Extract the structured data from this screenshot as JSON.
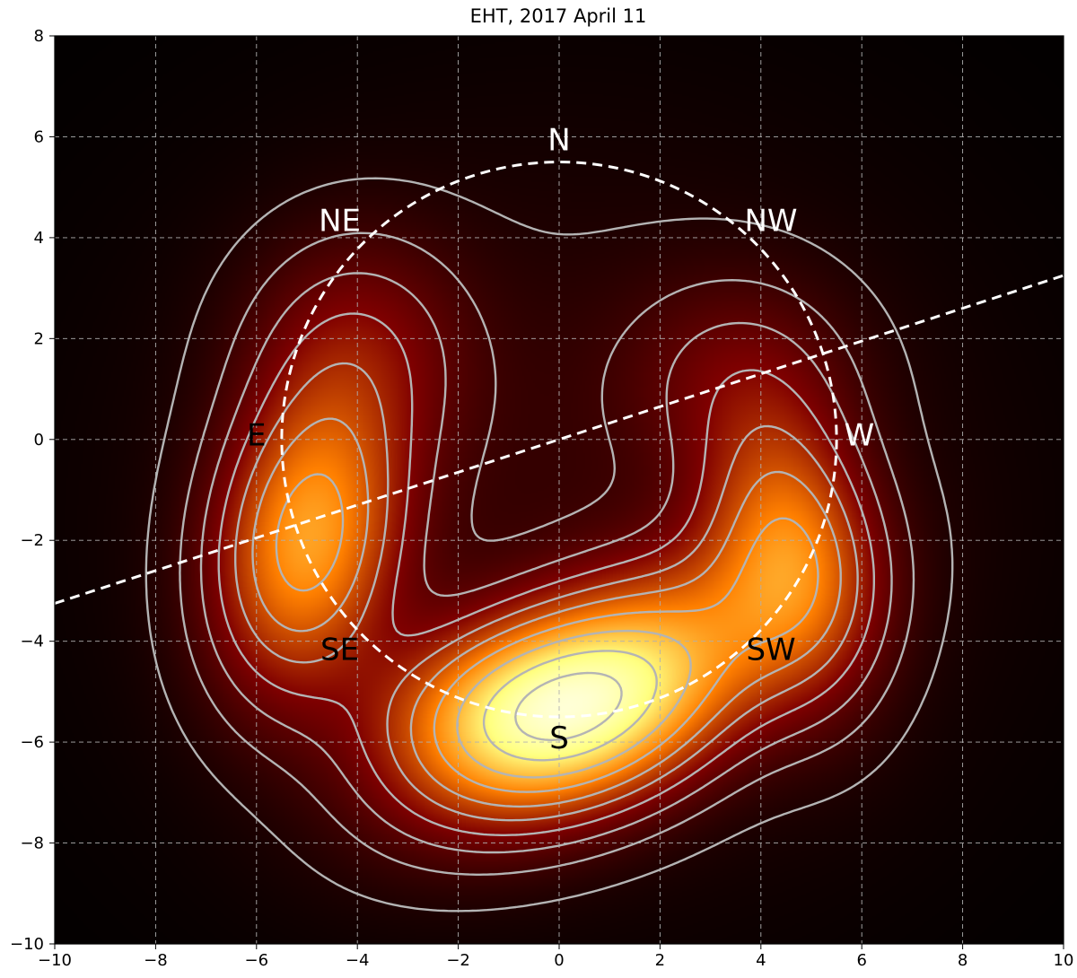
{
  "chart_data": {
    "type": "heatmap",
    "title": "EHT, 2017 April 11",
    "xlabel": "",
    "ylabel": "",
    "xlim": [
      -10,
      10
    ],
    "ylim": [
      -10,
      8
    ],
    "xticks": [
      -10,
      -8,
      -6,
      -4,
      -2,
      0,
      2,
      4,
      6,
      8,
      10
    ],
    "yticks": [
      -10,
      -8,
      -6,
      -4,
      -2,
      0,
      2,
      4,
      6,
      8
    ],
    "xtick_labels": [
      "−10",
      "−8",
      "−6",
      "−4",
      "−2",
      "0",
      "2",
      "4",
      "6",
      "8",
      "10"
    ],
    "ytick_labels": [
      "−10",
      "−8",
      "−6",
      "−4",
      "−2",
      "0",
      "2",
      "4",
      "6",
      "8"
    ],
    "grid": true,
    "colormap": "afmhot",
    "background_color": "#000000",
    "intensity_components": [
      {
        "cx": 0.9,
        "cy": -5.0,
        "sx": 2.6,
        "sy": 1.3,
        "rot_deg": 28,
        "amp": 1.0
      },
      {
        "cx": -0.5,
        "cy": -5.4,
        "sx": 2.0,
        "sy": 1.2,
        "rot_deg": 5,
        "amp": 0.75
      },
      {
        "cx": -5.0,
        "cy": -2.0,
        "sx": 1.2,
        "sy": 2.0,
        "rot_deg": -10,
        "amp": 0.9
      },
      {
        "cx": 4.6,
        "cy": -2.2,
        "sx": 1.1,
        "sy": 1.9,
        "rot_deg": 10,
        "amp": 0.7
      },
      {
        "cx": -4.0,
        "cy": 1.8,
        "sx": 1.5,
        "sy": 1.6,
        "rot_deg": 0,
        "amp": 0.28
      },
      {
        "cx": 3.5,
        "cy": 1.3,
        "sx": 1.6,
        "sy": 1.4,
        "rot_deg": 0,
        "amp": 0.2
      },
      {
        "cx": 0.0,
        "cy": -1.5,
        "sx": 5.5,
        "sy": 5.0,
        "rot_deg": 0,
        "amp": 0.12
      }
    ],
    "contour_levels": [
      0.04,
      0.09,
      0.15,
      0.22,
      0.3,
      0.39,
      0.5,
      0.62,
      0.76,
      0.9
    ],
    "contour_color": "#b4b4b4",
    "ring": {
      "cx": 0,
      "cy": 0,
      "r": 5.5,
      "style": "dashed",
      "color": "#ffffff"
    },
    "axis_line": {
      "x1": -10,
      "y1": -3.25,
      "x2": 10,
      "y2": 3.25,
      "style": "dashed",
      "color": "#ffffff"
    },
    "annotations": [
      {
        "text": "N",
        "x": 0.0,
        "y": 5.9,
        "color": "#ffffff"
      },
      {
        "text": "NE",
        "x": -4.35,
        "y": 4.3,
        "color": "#ffffff"
      },
      {
        "text": "NW",
        "x": 4.2,
        "y": 4.3,
        "color": "#ffffff"
      },
      {
        "text": "E",
        "x": -6.0,
        "y": 0.05,
        "color": "#000000"
      },
      {
        "text": "W",
        "x": 5.95,
        "y": 0.05,
        "color": "#ffffff"
      },
      {
        "text": "SE",
        "x": -4.35,
        "y": -4.2,
        "color": "#000000"
      },
      {
        "text": "SW",
        "x": 4.2,
        "y": -4.2,
        "color": "#000000"
      },
      {
        "text": "S",
        "x": 0.0,
        "y": -5.95,
        "color": "#000000"
      }
    ]
  }
}
